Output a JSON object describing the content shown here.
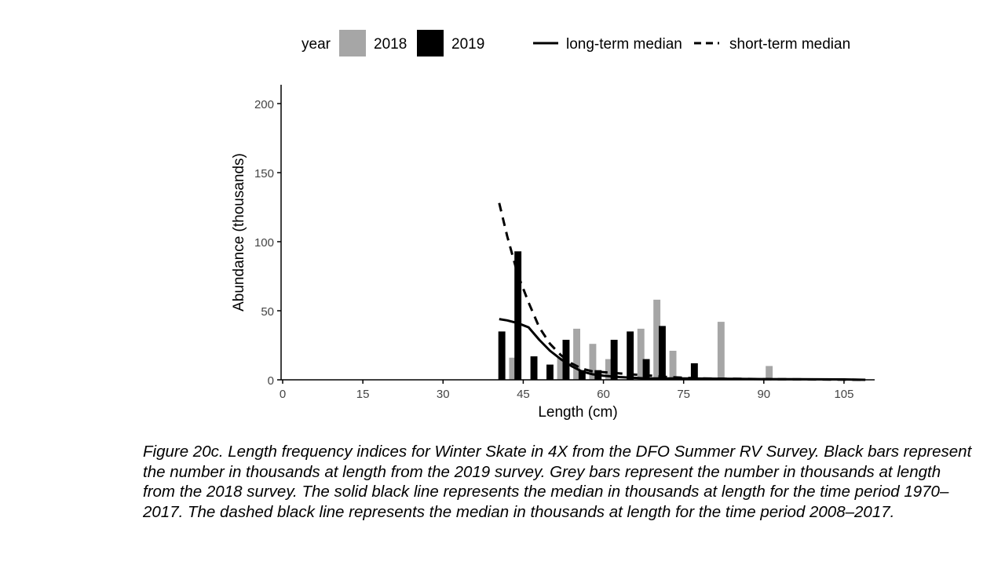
{
  "caption": "Figure 20c. Length frequency indices for Winter Skate in 4X from the DFO Summer RV Survey. Black bars represent the number in thousands at length from the 2019 survey. Grey bars represent the number in thousands at length from the 2018 survey. The solid black line represents the median in thousands at length for the time period 1970–2017. The dashed black line represents the median in thousands at length for the time period 2008–2017.",
  "chart_data": {
    "type": "bar",
    "title": "",
    "xlabel": "Length (cm)",
    "ylabel": "Abundance (thousands)",
    "xlim": [
      0,
      110
    ],
    "ylim": [
      0,
      200
    ],
    "xticks": [
      0,
      15,
      30,
      45,
      60,
      75,
      90,
      105
    ],
    "yticks": [
      0,
      50,
      100,
      150,
      200
    ],
    "grid": false,
    "legend": {
      "position": "top",
      "bars_title": "year",
      "bar_entries": [
        {
          "label": "2018",
          "color": "#a6a6a6"
        },
        {
          "label": "2019",
          "color": "#000000"
        }
      ],
      "line_entries": [
        {
          "label": "long-term median",
          "style": "solid"
        },
        {
          "label": "short-term median",
          "style": "dashed"
        }
      ]
    },
    "bar_width": 1.3,
    "bar_series": [
      {
        "name": "2018",
        "color": "#a6a6a6",
        "points": [
          {
            "x": 43,
            "y": 16
          },
          {
            "x": 52,
            "y": 16
          },
          {
            "x": 55,
            "y": 37
          },
          {
            "x": 58,
            "y": 26
          },
          {
            "x": 61,
            "y": 15
          },
          {
            "x": 67,
            "y": 37
          },
          {
            "x": 70,
            "y": 58
          },
          {
            "x": 73,
            "y": 21
          },
          {
            "x": 82,
            "y": 42
          },
          {
            "x": 91,
            "y": 10
          }
        ]
      },
      {
        "name": "2019",
        "color": "#000000",
        "points": [
          {
            "x": 41,
            "y": 35
          },
          {
            "x": 44,
            "y": 93
          },
          {
            "x": 47,
            "y": 17
          },
          {
            "x": 50,
            "y": 11
          },
          {
            "x": 53,
            "y": 29
          },
          {
            "x": 56,
            "y": 7
          },
          {
            "x": 59,
            "y": 7
          },
          {
            "x": 62,
            "y": 29
          },
          {
            "x": 65,
            "y": 35
          },
          {
            "x": 68,
            "y": 15
          },
          {
            "x": 71,
            "y": 39
          },
          {
            "x": 77,
            "y": 12
          }
        ]
      }
    ],
    "line_series": [
      {
        "name": "long-term median",
        "style": "solid",
        "points": [
          [
            40.5,
            44
          ],
          [
            42,
            43
          ],
          [
            44,
            41
          ],
          [
            46,
            38
          ],
          [
            48,
            29
          ],
          [
            50,
            21
          ],
          [
            52,
            15
          ],
          [
            54,
            10
          ],
          [
            56,
            6
          ],
          [
            58,
            4
          ],
          [
            60,
            3
          ],
          [
            63,
            2
          ],
          [
            68,
            1
          ],
          [
            75,
            1
          ],
          [
            90,
            0.5
          ],
          [
            105,
            0.3
          ],
          [
            109,
            0
          ]
        ]
      },
      {
        "name": "short-term median",
        "style": "dashed",
        "points": [
          [
            40.5,
            128
          ],
          [
            42,
            104
          ],
          [
            44,
            76
          ],
          [
            46,
            56
          ],
          [
            48,
            38
          ],
          [
            50,
            26
          ],
          [
            52,
            18
          ],
          [
            54,
            12
          ],
          [
            56,
            8
          ],
          [
            58,
            6
          ],
          [
            62,
            5
          ],
          [
            65,
            4
          ],
          [
            69,
            3
          ],
          [
            72,
            2
          ],
          [
            78,
            1
          ],
          [
            90,
            0.5
          ],
          [
            109,
            0
          ]
        ]
      }
    ]
  }
}
